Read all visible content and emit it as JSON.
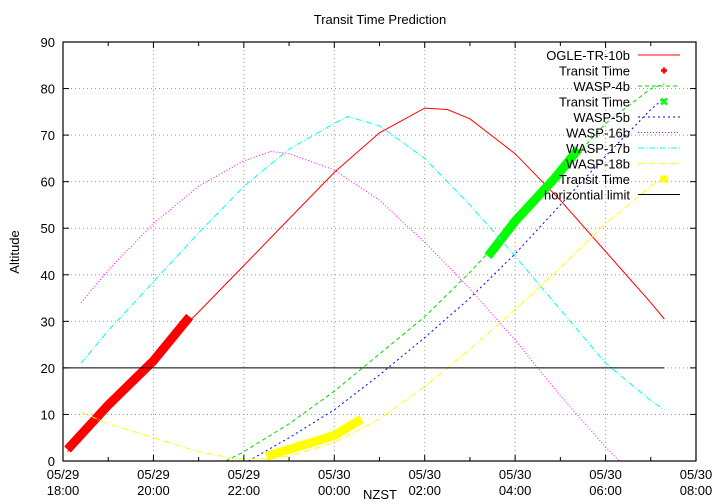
{
  "chart_data": {
    "type": "line",
    "title": "Transit Time Prediction",
    "xlabel": "NZST",
    "ylabel": "Altitude",
    "ylim": [
      0,
      90
    ],
    "xlim_hours": [
      18,
      32
    ],
    "x_ticks": [
      {
        "date": "05/29",
        "time": "18:00",
        "h": 18
      },
      {
        "date": "05/29",
        "time": "20:00",
        "h": 20
      },
      {
        "date": "05/29",
        "time": "22:00",
        "h": 22
      },
      {
        "date": "05/30",
        "time": "00:00",
        "h": 24
      },
      {
        "date": "05/30",
        "time": "02:00",
        "h": 26
      },
      {
        "date": "05/30",
        "time": "04:00",
        "h": 28
      },
      {
        "date": "05/30",
        "time": "06:00",
        "h": 30
      },
      {
        "date": "05/30",
        "time": "08:00",
        "h": 32
      }
    ],
    "y_ticks": [
      0,
      10,
      20,
      30,
      40,
      50,
      60,
      70,
      80,
      90
    ],
    "grid": true,
    "legend_position": "top-right",
    "series": [
      {
        "name": "OGLE-TR-10b",
        "style": "line",
        "color": "#ff0000",
        "dash": "",
        "points": [
          [
            18.1,
            2
          ],
          [
            19,
            12
          ],
          [
            20,
            22.5
          ],
          [
            21,
            32
          ],
          [
            22,
            42
          ],
          [
            23,
            52
          ],
          [
            24,
            62
          ],
          [
            25,
            70.5
          ],
          [
            26,
            75.8
          ],
          [
            26.5,
            75.5
          ],
          [
            27,
            73.5
          ],
          [
            28,
            66
          ],
          [
            29,
            56
          ],
          [
            30,
            45
          ],
          [
            31,
            34
          ],
          [
            31.3,
            30.5
          ]
        ]
      },
      {
        "name": "Transit Time",
        "style": "transit",
        "color": "#ff0000",
        "marker": "+",
        "points": [
          [
            18.1,
            2.5
          ],
          [
            19,
            12
          ],
          [
            20,
            21.5
          ],
          [
            20.8,
            31
          ]
        ]
      },
      {
        "name": "WASP-4b",
        "style": "line",
        "color": "#00dd00",
        "dash": "4,3",
        "points": [
          [
            21.6,
            0
          ],
          [
            22,
            2
          ],
          [
            23,
            8
          ],
          [
            24,
            15
          ],
          [
            25,
            23
          ],
          [
            26,
            31
          ],
          [
            27,
            40.5
          ],
          [
            28,
            51
          ],
          [
            29,
            62
          ],
          [
            30,
            72.5
          ],
          [
            31,
            80
          ],
          [
            31.3,
            81
          ]
        ]
      },
      {
        "name": "Transit Time",
        "style": "transit",
        "color": "#00ff00",
        "marker": "x",
        "points": [
          [
            27.4,
            44
          ],
          [
            28,
            51.5
          ],
          [
            28.9,
            61
          ],
          [
            29.4,
            67
          ]
        ]
      },
      {
        "name": "WASP-5b",
        "style": "line",
        "color": "#0000ff",
        "dash": "2,3",
        "points": [
          [
            22.1,
            0
          ],
          [
            23,
            5
          ],
          [
            24,
            11
          ],
          [
            25,
            18.5
          ],
          [
            26,
            26.5
          ],
          [
            27,
            35
          ],
          [
            28,
            44.5
          ],
          [
            29,
            55
          ],
          [
            30,
            65.5
          ],
          [
            31,
            75.5
          ],
          [
            31.3,
            78
          ]
        ]
      },
      {
        "name": "WASP-16b",
        "style": "line",
        "color": "#ff00ff",
        "dash": "1,2",
        "points": [
          [
            18.4,
            34
          ],
          [
            19,
            41
          ],
          [
            20,
            51
          ],
          [
            21,
            59
          ],
          [
            22,
            64.5
          ],
          [
            22.6,
            66.5
          ],
          [
            23,
            66
          ],
          [
            24,
            62.5
          ],
          [
            25,
            56
          ],
          [
            26,
            47
          ],
          [
            27,
            37
          ],
          [
            28,
            26
          ],
          [
            29,
            14
          ],
          [
            30,
            3
          ],
          [
            30.3,
            0
          ]
        ]
      },
      {
        "name": "WASP-17b",
        "style": "line",
        "color": "#00ffff",
        "dash": "6,2,1,2",
        "points": [
          [
            18.4,
            21
          ],
          [
            19,
            28
          ],
          [
            20,
            38.5
          ],
          [
            21,
            49
          ],
          [
            22,
            59
          ],
          [
            23,
            67
          ],
          [
            24,
            72.5
          ],
          [
            24.3,
            74
          ],
          [
            25,
            72
          ],
          [
            26,
            65
          ],
          [
            27,
            55
          ],
          [
            28,
            44
          ],
          [
            29,
            32.5
          ],
          [
            30,
            21
          ],
          [
            31,
            13
          ],
          [
            31.3,
            11
          ]
        ]
      },
      {
        "name": "WASP-18b",
        "style": "line",
        "color": "#ffff00",
        "dash": "6,2,1,2",
        "points": [
          [
            18.4,
            10.5
          ],
          [
            19,
            8
          ],
          [
            20,
            5
          ],
          [
            21,
            2
          ],
          [
            21.8,
            0.5
          ],
          [
            22.5,
            0.5
          ],
          [
            23,
            1
          ],
          [
            24,
            4
          ],
          [
            25,
            9
          ],
          [
            26,
            16
          ],
          [
            27,
            24
          ],
          [
            28,
            32.5
          ],
          [
            29,
            41.5
          ],
          [
            30,
            51
          ],
          [
            31,
            59
          ],
          [
            31.3,
            61
          ]
        ]
      },
      {
        "name": "Transit Time",
        "style": "transit",
        "color": "#ffff00",
        "marker": "square",
        "points": [
          [
            22.5,
            1
          ],
          [
            23,
            2.5
          ],
          [
            24,
            5.5
          ],
          [
            24.6,
            9
          ]
        ]
      },
      {
        "name": "horizontial limit",
        "style": "line",
        "color": "#000000",
        "dash": "",
        "points": [
          [
            18,
            20
          ],
          [
            31.3,
            20
          ]
        ]
      }
    ]
  }
}
